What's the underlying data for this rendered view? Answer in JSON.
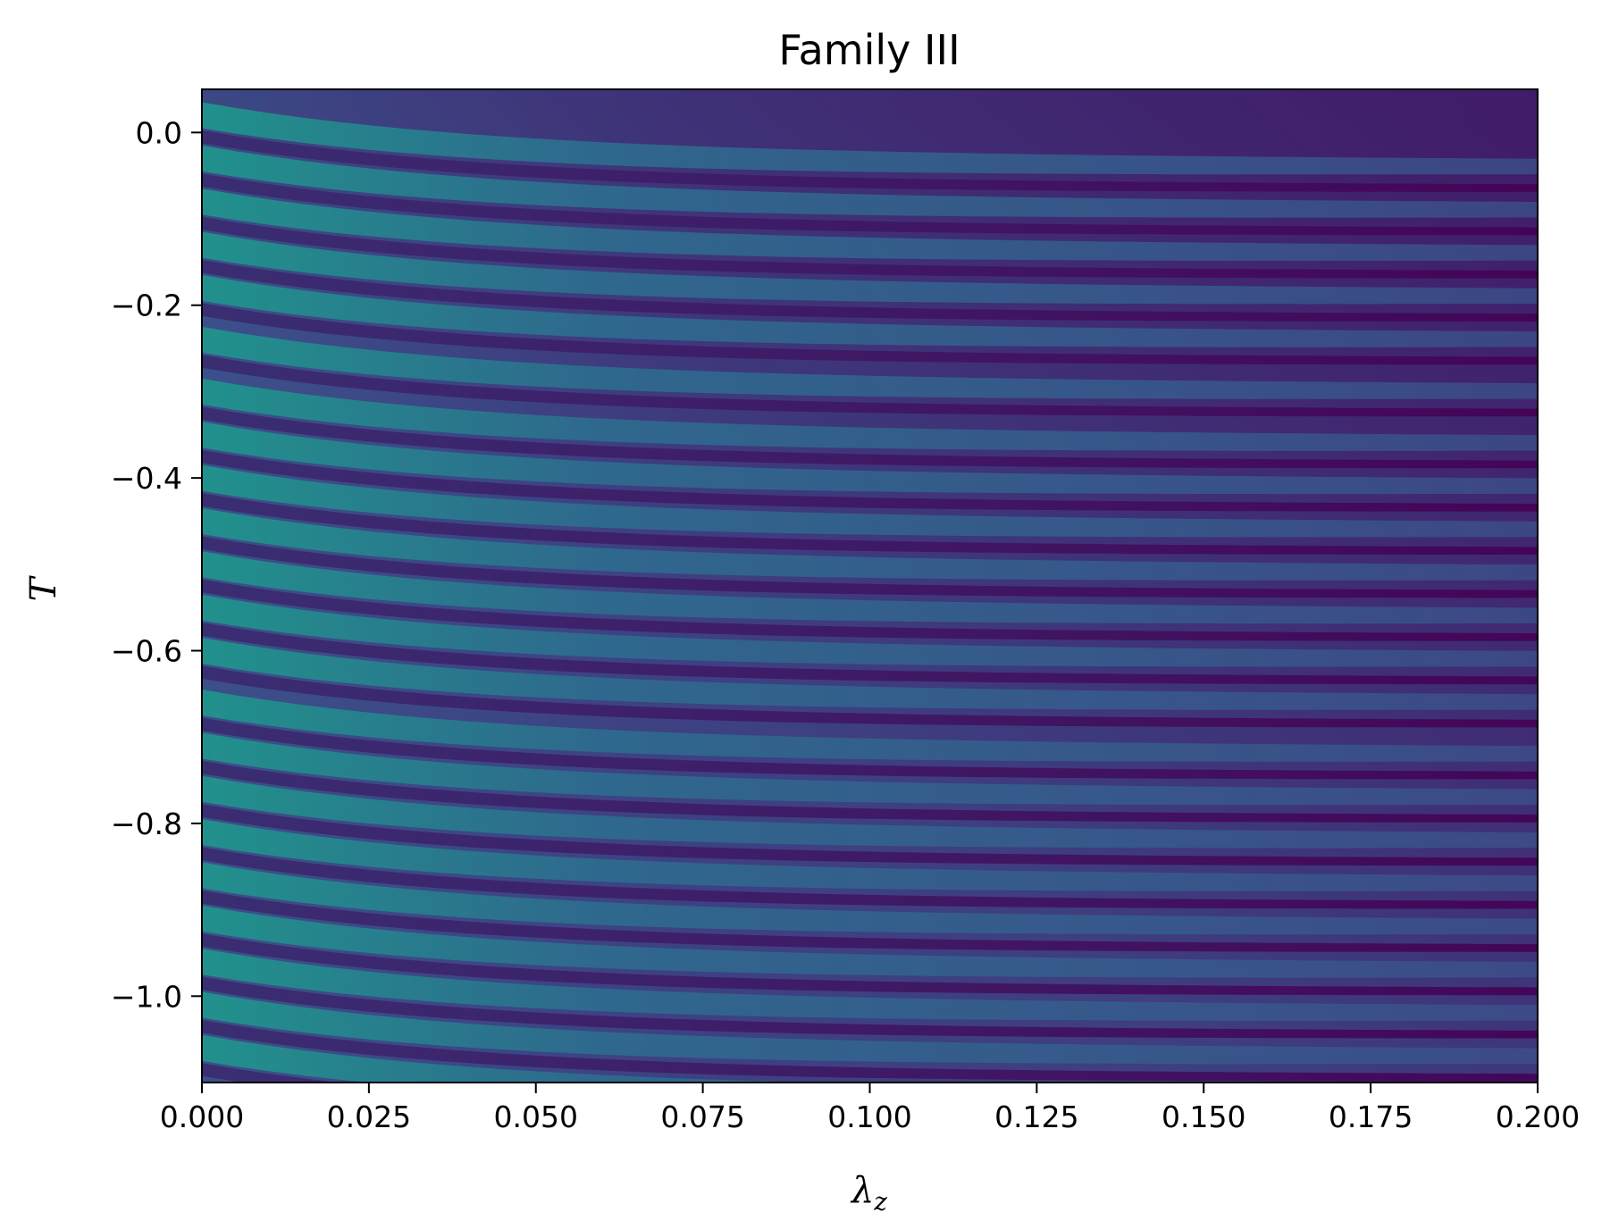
{
  "chart_data": {
    "type": "heatmap",
    "title": "Family III",
    "xlabel": "λ",
    "xlabel_subscript": "z",
    "ylabel": "T",
    "xlim": [
      0.0,
      0.2
    ],
    "ylim": [
      -1.1,
      0.05
    ],
    "x_ticks": [
      0.0,
      0.025,
      0.05,
      0.075,
      0.1,
      0.125,
      0.15,
      0.175,
      0.2
    ],
    "x_tick_labels": [
      "0.000",
      "0.025",
      "0.050",
      "0.075",
      "0.100",
      "0.125",
      "0.150",
      "0.175",
      "0.200"
    ],
    "y_ticks": [
      0.0,
      -0.2,
      -0.4,
      -0.6,
      -0.8,
      -1.0
    ],
    "y_tick_labels": [
      "0.0",
      "−0.2",
      "−0.4",
      "−0.6",
      "−0.8",
      "−1.0"
    ],
    "colormap": "viridis",
    "grid": false,
    "stripe_center_T": [
      0.02,
      -0.03,
      -0.08,
      -0.13,
      -0.18,
      -0.24,
      -0.3,
      -0.35,
      -0.4,
      -0.45,
      -0.5,
      -0.55,
      -0.6,
      -0.66,
      -0.71,
      -0.76,
      -0.81,
      -0.86,
      -0.91,
      -0.96,
      -1.01,
      -1.06
    ],
    "colors": {
      "low": "#440154",
      "mid": "#3b528b",
      "high": "#21918c"
    }
  }
}
